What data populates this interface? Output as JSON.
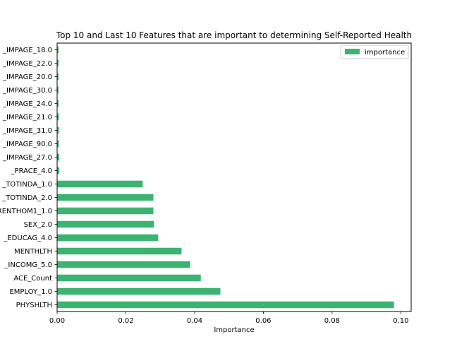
{
  "chart_data": {
    "type": "bar",
    "orientation": "horizontal",
    "title": "Top 10 and Last 10 Features that are important to determining Self-Reported Health",
    "xlabel": "Importance",
    "ylabel": "",
    "xlim": [
      0,
      0.103
    ],
    "x_ticks": [
      0.0,
      0.02,
      0.04,
      0.06,
      0.08,
      0.1
    ],
    "x_tick_labels": [
      "0.00",
      "0.02",
      "0.04",
      "0.06",
      "0.08",
      "0.10"
    ],
    "grid": false,
    "legend_position": "top-right",
    "categories": [
      "PHYSHLTH",
      "EMPLOY_1.0",
      "ACE_Count",
      "_INCOMG_5.0",
      "MENTHLTH",
      "_EDUCAG_4.0",
      "SEX_2.0",
      "RENTHOM1_1.0",
      "_TOTINDA_2.0",
      "_TOTINDA_1.0",
      "_PRACE_4.0",
      "_IMPAGE_27.0",
      "_IMPAGE_90.0",
      "_IMPAGE_31.0",
      "_IMPAGE_21.0",
      "_IMPAGE_24.0",
      "_IMPAGE_30.0",
      "_IMPAGE_20.0",
      "_IMPAGE_22.0",
      "_IMPAGE_18.0"
    ],
    "series": [
      {
        "name": "importance",
        "color": "#3cb371",
        "values": [
          0.098,
          0.0475,
          0.0418,
          0.0387,
          0.0362,
          0.0294,
          0.0282,
          0.028,
          0.028,
          0.0249,
          0.0006,
          0.0006,
          0.0005,
          0.0005,
          0.0005,
          0.0004,
          0.0004,
          0.0004,
          0.0004,
          0.0004
        ]
      }
    ]
  }
}
